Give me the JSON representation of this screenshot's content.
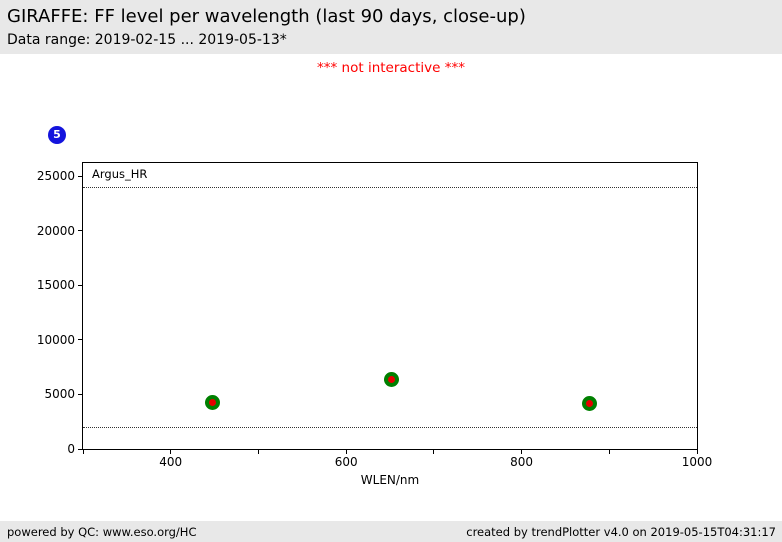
{
  "header": {
    "title": "GIRAFFE: FF level per wavelength (last 90 days, close-up)",
    "subtitle": "Data range: 2019-02-15 ... 2019-05-13*"
  },
  "warning": "*** not interactive ***",
  "badge": {
    "label": "5",
    "color": "#1414dd"
  },
  "chart_data": {
    "type": "scatter",
    "panel_label": "Argus_HR",
    "xlabel": "WLEN/nm",
    "ylabel": "",
    "xlim": [
      300,
      1000
    ],
    "ylim": [
      0,
      26200
    ],
    "x_major_ticks": [
      400,
      600,
      800,
      1000
    ],
    "x_minor_ticks": [
      300,
      500,
      700,
      900
    ],
    "y_ticks": [
      0,
      5000,
      10000,
      15000,
      20000,
      25000
    ],
    "grid": false,
    "legend": "none",
    "threshold_lines": [
      24000,
      2000
    ],
    "series": [
      {
        "name": "FF level",
        "marker": {
          "outer_color": "#008000",
          "inner_color": "#e60000",
          "outer_diameter": 15,
          "inner_diameter": 7
        },
        "points": [
          {
            "x": 448,
            "y": 4250
          },
          {
            "x": 652,
            "y": 6350
          },
          {
            "x": 877,
            "y": 4150
          }
        ]
      }
    ]
  },
  "footer": {
    "left": "powered by QC: www.eso.org/HC",
    "right": "created by trendPlotter v4.0 on 2019-05-15T04:31:17"
  },
  "colors": {
    "header_background": "#e8e8e8",
    "footer_background": "#e8e8e8",
    "warning_text": "#ff0000",
    "badge_blue": "#1414dd",
    "marker_green": "#008000",
    "marker_red": "#e60000",
    "axis_black": "#000000"
  }
}
